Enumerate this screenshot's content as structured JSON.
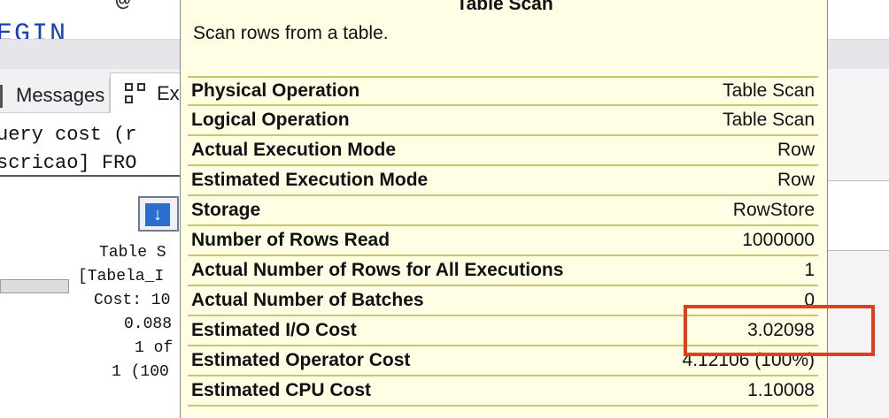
{
  "editor": {
    "top_text": "@",
    "keyword_text": "EGIN"
  },
  "tabs": {
    "messages": "Messages",
    "execution_plan": "Ex"
  },
  "query_lines": [
    "uery cost (r",
    "scricao] FRO"
  ],
  "operator": {
    "lines": [
      "Table S",
      "[Tabela_I",
      "Cost: 10",
      "0.088",
      "1 of",
      "1 (100"
    ]
  },
  "tooltip": {
    "title": "Table Scan",
    "description": "Scan rows from a table.",
    "rows": [
      {
        "label": "Physical Operation",
        "value": "Table Scan"
      },
      {
        "label": "Logical Operation",
        "value": "Table Scan"
      },
      {
        "label": "Actual Execution Mode",
        "value": "Row"
      },
      {
        "label": "Estimated Execution Mode",
        "value": "Row"
      },
      {
        "label": "Storage",
        "value": "RowStore"
      },
      {
        "label": "Number of Rows Read",
        "value": "1000000"
      },
      {
        "label": "Actual Number of Rows for All Executions",
        "value": "1"
      },
      {
        "label": "Actual Number of Batches",
        "value": "0"
      },
      {
        "label": "Estimated I/O Cost",
        "value": "3.02098"
      },
      {
        "label": "Estimated Operator Cost",
        "value": "4.12106 (100%)"
      },
      {
        "label": "Estimated CPU Cost",
        "value": "1.10008"
      }
    ]
  },
  "highlight_color": "#e23d1d"
}
